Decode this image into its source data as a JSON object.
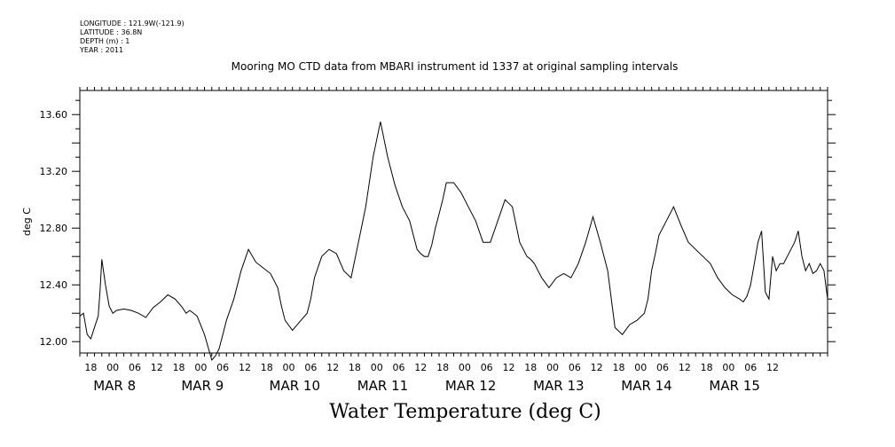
{
  "meta": {
    "longitude": "LONGITUDE : 121.9W(-121.9)",
    "latitude": "LATITUDE : 36.8N",
    "depth": "DEPTH (m) : 1",
    "year": "YEAR : 2011"
  },
  "chart_data": {
    "type": "line",
    "title": "Mooring MO CTD data from MBARI instrument id 1337 at original sampling intervals",
    "xlabel": "Water Temperature (deg C)",
    "ylabel": "deg C",
    "ylim": [
      11.92,
      13.77
    ],
    "yticks": [
      "12.00",
      "12.40",
      "12.80",
      "13.20",
      "13.60"
    ],
    "x_unit": "hours since MAR 7 15:00",
    "xlim": [
      0,
      204
    ],
    "hour_labels": [
      "18",
      "00",
      "06",
      "12",
      "18",
      "00",
      "06",
      "12",
      "18",
      "00",
      "06",
      "12",
      "18",
      "00",
      "06",
      "12",
      "18",
      "00",
      "06",
      "12",
      "18",
      "00",
      "06",
      "12",
      "18",
      "00",
      "06",
      "12",
      "18",
      "00",
      "06",
      "12"
    ],
    "date_labels": [
      "MAR  8",
      "MAR  9",
      "MAR 10",
      "MAR 11",
      "MAR 12",
      "MAR 13",
      "MAR 14",
      "MAR 15"
    ],
    "series": [
      {
        "name": "",
        "x": [
          0,
          1,
          2,
          3,
          4,
          5,
          5.5,
          6,
          7,
          8,
          9,
          10,
          12,
          14,
          16,
          18,
          20,
          22,
          24,
          26,
          28,
          29,
          30,
          32,
          34,
          36,
          37,
          38,
          39,
          40,
          42,
          44,
          46,
          48,
          50,
          52,
          54,
          55,
          56,
          58,
          60,
          62,
          63,
          64,
          66,
          68,
          70,
          72,
          74,
          76,
          78,
          80,
          82,
          84,
          86,
          88,
          90,
          91,
          92,
          93,
          94,
          95,
          96,
          97,
          98,
          99,
          100,
          102,
          104,
          106,
          108,
          110,
          112,
          114,
          116,
          118,
          120,
          122,
          123,
          124,
          126,
          128,
          130,
          132,
          134,
          136,
          138,
          140,
          142,
          144,
          146,
          148,
          150,
          152,
          154,
          155,
          156,
          157,
          158,
          160,
          162,
          164,
          166,
          168,
          170,
          172,
          174,
          176,
          178,
          180,
          181,
          182,
          183,
          184,
          185,
          186,
          187,
          188,
          189,
          190,
          191,
          192,
          193,
          194,
          195,
          196,
          197,
          198,
          199,
          200,
          201,
          202,
          203,
          204
        ],
        "y": [
          12.18,
          12.2,
          12.05,
          12.02,
          12.1,
          12.18,
          12.35,
          12.58,
          12.4,
          12.25,
          12.2,
          12.22,
          12.23,
          12.22,
          12.2,
          12.17,
          12.24,
          12.28,
          12.33,
          12.3,
          12.24,
          12.2,
          12.22,
          12.18,
          12.05,
          11.87,
          11.9,
          11.95,
          12.05,
          12.15,
          12.3,
          12.5,
          12.65,
          12.56,
          12.52,
          12.48,
          12.38,
          12.25,
          12.15,
          12.08,
          12.14,
          12.2,
          12.3,
          12.45,
          12.6,
          12.65,
          12.62,
          12.5,
          12.45,
          12.7,
          12.95,
          13.3,
          13.55,
          13.3,
          13.1,
          12.95,
          12.85,
          12.75,
          12.65,
          12.62,
          12.6,
          12.6,
          12.68,
          12.8,
          12.9,
          13.0,
          13.12,
          13.12,
          13.05,
          12.95,
          12.85,
          12.7,
          12.7,
          12.85,
          13.0,
          12.95,
          12.7,
          12.6,
          12.58,
          12.55,
          12.45,
          12.38,
          12.45,
          12.48,
          12.45,
          12.55,
          12.7,
          12.88,
          12.7,
          12.5,
          12.1,
          12.05,
          12.12,
          12.15,
          12.2,
          12.3,
          12.5,
          12.62,
          12.75,
          12.85,
          12.95,
          12.82,
          12.7,
          12.65,
          12.6,
          12.55,
          12.45,
          12.38,
          12.33,
          12.3,
          12.28,
          12.32,
          12.4,
          12.55,
          12.7,
          12.78,
          12.35,
          12.3,
          12.6,
          12.5,
          12.55,
          12.55,
          12.6,
          12.65,
          12.7,
          12.78,
          12.6,
          12.5,
          12.55,
          12.48,
          12.5,
          12.55,
          12.5,
          12.3
        ]
      }
    ]
  }
}
